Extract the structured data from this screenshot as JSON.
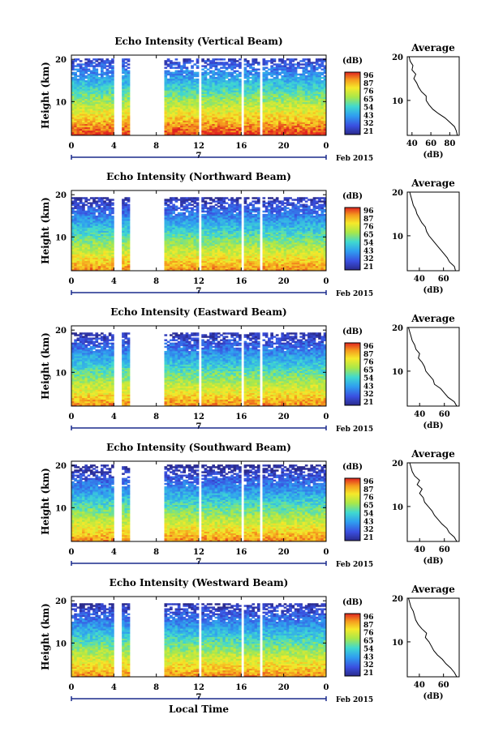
{
  "figure_xlabel": "Local Time",
  "scale": {
    "height_max_km": 21,
    "height_min_km": 2,
    "time_max_h": 24,
    "avg_db_min": 30,
    "avg_db_max": 90
  },
  "chart_data": [
    {
      "type": "heatmap",
      "title": "Echo Intensity (Vertical Beam)",
      "xlabel": "",
      "ylabel": "Height (km)",
      "x_ticks": [
        "0",
        "4",
        "8",
        "12",
        "16",
        "20",
        "0"
      ],
      "x_tick_values": [
        0,
        4,
        8,
        12,
        16,
        20,
        24
      ],
      "y_ticks": [
        "20",
        "10"
      ],
      "y_tick_values": [
        20,
        10
      ],
      "date_label": "7",
      "month_label": "Feb 2015",
      "colorbar": {
        "unit": "(dB)",
        "ticks": [
          "96",
          "87",
          "76",
          "65",
          "54",
          "43",
          "32",
          "21"
        ],
        "range": [
          21,
          96
        ]
      },
      "data_gaps_hours": [
        [
          4.1,
          4.7
        ],
        [
          5.6,
          8.8
        ],
        [
          11.9,
          12.3
        ],
        [
          15.9,
          16.2
        ],
        [
          17.7,
          18.0
        ]
      ],
      "top_height_km": 20,
      "profile": {
        "title": "Average",
        "xlabel": "(dB)",
        "x_ticks": [
          "40",
          "60",
          "80"
        ],
        "y_ticks": [
          "20",
          "10"
        ],
        "xlim": [
          35,
          90
        ],
        "heights_km": [
          2,
          3,
          4,
          5,
          6,
          7,
          8,
          9,
          10,
          11,
          12,
          13,
          14,
          15,
          16,
          17,
          18,
          19,
          20
        ],
        "values_db": [
          88,
          87,
          85,
          80,
          75,
          68,
          62,
          58,
          55,
          55,
          50,
          47,
          45,
          42,
          44,
          40,
          41,
          38,
          37
        ]
      }
    },
    {
      "type": "heatmap",
      "title": "Echo Intensity (Northward Beam)",
      "xlabel": "",
      "ylabel": "Height (km)",
      "x_ticks": [
        "0",
        "4",
        "8",
        "12",
        "16",
        "20",
        "0"
      ],
      "x_tick_values": [
        0,
        4,
        8,
        12,
        16,
        20,
        24
      ],
      "y_ticks": [
        "20",
        "10"
      ],
      "y_tick_values": [
        20,
        10
      ],
      "date_label": "7",
      "month_label": "Feb 2015",
      "colorbar": {
        "unit": "(dB)",
        "ticks": [
          "96",
          "87",
          "76",
          "65",
          "54",
          "43",
          "32",
          "21"
        ],
        "range": [
          21,
          96
        ]
      },
      "data_gaps_hours": [
        [
          4.1,
          4.7
        ],
        [
          5.6,
          8.8
        ],
        [
          11.9,
          12.3
        ],
        [
          15.9,
          16.2
        ],
        [
          17.7,
          18.0
        ]
      ],
      "top_height_km": 19,
      "profile": {
        "title": "Average",
        "xlabel": "(dB)",
        "x_ticks": [
          "40",
          "60"
        ],
        "y_ticks": [
          "20",
          "10"
        ],
        "xlim": [
          30,
          73
        ],
        "heights_km": [
          2,
          3,
          4,
          5,
          6,
          7,
          8,
          9,
          10,
          11,
          12,
          13,
          14,
          15,
          16,
          17,
          18,
          19,
          20
        ],
        "values_db": [
          70,
          69,
          65,
          63,
          60,
          57,
          54,
          51,
          48,
          46,
          45,
          42,
          40,
          38,
          37,
          35,
          34,
          33,
          32
        ]
      }
    },
    {
      "type": "heatmap",
      "title": "Echo Intensity (Eastward Beam)",
      "xlabel": "",
      "ylabel": "Height (km)",
      "x_ticks": [
        "0",
        "4",
        "8",
        "12",
        "16",
        "20",
        "0"
      ],
      "x_tick_values": [
        0,
        4,
        8,
        12,
        16,
        20,
        24
      ],
      "y_ticks": [
        "20",
        "10"
      ],
      "y_tick_values": [
        20,
        10
      ],
      "date_label": "7",
      "month_label": "Feb 2015",
      "colorbar": {
        "unit": "(dB)",
        "ticks": [
          "96",
          "87",
          "76",
          "65",
          "54",
          "43",
          "32",
          "21"
        ],
        "range": [
          21,
          96
        ]
      },
      "data_gaps_hours": [
        [
          4.1,
          4.7
        ],
        [
          5.6,
          8.8
        ],
        [
          11.9,
          12.3
        ],
        [
          15.9,
          16.2
        ],
        [
          17.7,
          18.0
        ]
      ],
      "top_height_km": 19,
      "profile": {
        "title": "Average",
        "xlabel": "(dB)",
        "x_ticks": [
          "40",
          "60"
        ],
        "y_ticks": [
          "20",
          "10"
        ],
        "xlim": [
          30,
          72
        ],
        "heights_km": [
          2,
          3,
          4,
          5,
          6,
          7,
          8,
          9,
          10,
          11,
          12,
          13,
          14,
          15,
          16,
          17,
          18,
          19,
          20
        ],
        "values_db": [
          70,
          68,
          63,
          60,
          57,
          52,
          51,
          48,
          45,
          44,
          42,
          39,
          40,
          37,
          36,
          34,
          33,
          32,
          31
        ]
      }
    },
    {
      "type": "heatmap",
      "title": "Echo Intensity (Southward Beam)",
      "xlabel": "",
      "ylabel": "Height (km)",
      "x_ticks": [
        "0",
        "4",
        "8",
        "12",
        "16",
        "20",
        "0"
      ],
      "x_tick_values": [
        0,
        4,
        8,
        12,
        16,
        20,
        24
      ],
      "y_ticks": [
        "20",
        "10"
      ],
      "y_tick_values": [
        20,
        10
      ],
      "date_label": "7",
      "month_label": "Feb 2015",
      "colorbar": {
        "unit": "(dB)",
        "ticks": [
          "96",
          "87",
          "76",
          "65",
          "54",
          "43",
          "32",
          "21"
        ],
        "range": [
          21,
          96
        ]
      },
      "data_gaps_hours": [
        [
          4.1,
          4.7
        ],
        [
          5.6,
          8.8
        ],
        [
          11.9,
          12.3
        ],
        [
          15.9,
          16.2
        ],
        [
          17.7,
          18.0
        ]
      ],
      "top_height_km": 20,
      "profile": {
        "title": "Average",
        "xlabel": "(dB)",
        "x_ticks": [
          "40",
          "60"
        ],
        "y_ticks": [
          "20",
          "10"
        ],
        "xlim": [
          30,
          72
        ],
        "heights_km": [
          2,
          3,
          4,
          5,
          6,
          7,
          8,
          9,
          10,
          11,
          12,
          13,
          14,
          15,
          16,
          17,
          18,
          19,
          20
        ],
        "values_db": [
          70,
          68,
          64,
          62,
          58,
          55,
          52,
          50,
          47,
          44,
          43,
          40,
          42,
          38,
          40,
          36,
          34,
          33,
          32
        ]
      }
    },
    {
      "type": "heatmap",
      "title": "Echo Intensity (Westward Beam)",
      "xlabel": "",
      "ylabel": "Height (km)",
      "x_ticks": [
        "0",
        "4",
        "8",
        "12",
        "16",
        "20",
        "0"
      ],
      "x_tick_values": [
        0,
        4,
        8,
        12,
        16,
        20,
        24
      ],
      "y_ticks": [
        "20",
        "10"
      ],
      "y_tick_values": [
        20,
        10
      ],
      "date_label": "7",
      "month_label": "Feb 2015",
      "colorbar": {
        "unit": "(dB)",
        "ticks": [
          "96",
          "87",
          "76",
          "65",
          "54",
          "43",
          "32",
          "21"
        ],
        "range": [
          21,
          96
        ]
      },
      "data_gaps_hours": [
        [
          4.1,
          4.7
        ],
        [
          5.6,
          8.8
        ],
        [
          11.9,
          12.3
        ],
        [
          15.9,
          16.2
        ],
        [
          17.7,
          18.0
        ]
      ],
      "top_height_km": 19,
      "profile": {
        "title": "Average",
        "xlabel": "(dB)",
        "x_ticks": [
          "40",
          "60"
        ],
        "y_ticks": [
          "20",
          "10"
        ],
        "xlim": [
          30,
          73
        ],
        "heights_km": [
          2,
          3,
          4,
          5,
          6,
          7,
          8,
          9,
          10,
          11,
          12,
          13,
          14,
          15,
          16,
          17,
          18,
          19,
          20
        ],
        "values_db": [
          71,
          69,
          66,
          62,
          59,
          55,
          52,
          50,
          48,
          45,
          46,
          42,
          39,
          37,
          36,
          35,
          33,
          32,
          31
        ]
      }
    }
  ]
}
